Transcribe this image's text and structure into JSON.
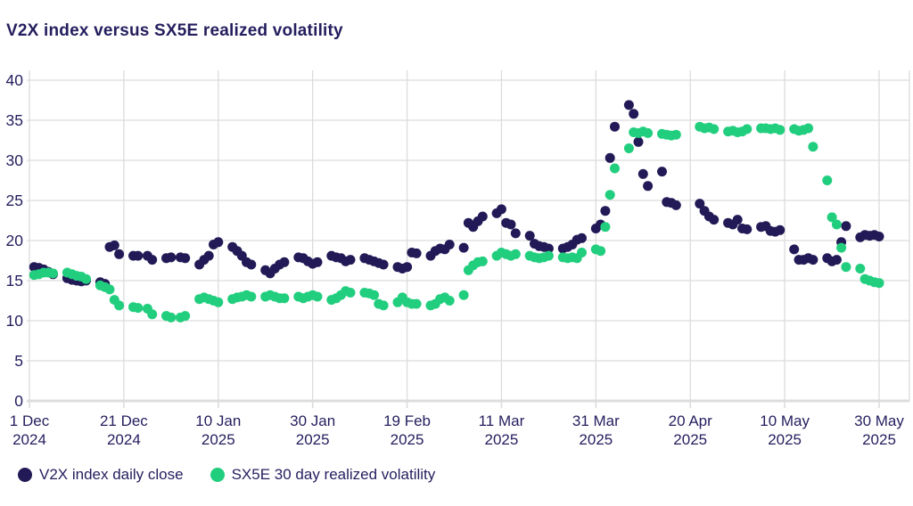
{
  "title": "V2X index versus SX5E realized volatility",
  "colors": {
    "v2x": "#221a56",
    "sx5e": "#21ce7e",
    "text": "#241e5e",
    "grid": "#dcdcdc"
  },
  "legend": [
    {
      "label": "V2X index daily close",
      "series": "v2x"
    },
    {
      "label": "SX5E 30 day realized volatility",
      "series": "sx5e"
    }
  ],
  "chart_data": {
    "type": "scatter",
    "title": "V2X index versus SX5E realized volatility",
    "xlabel": "",
    "ylabel": "",
    "ylim": [
      0,
      40
    ],
    "y_ticks": [
      0,
      5,
      10,
      15,
      20,
      25,
      30,
      35,
      40
    ],
    "grid": true,
    "legend_position": "bottom-left",
    "x_start": "2024-12-01",
    "x_end": "2025-05-30",
    "x_ticks": [
      {
        "date": "2024-12-01",
        "line1": "1 Dec",
        "line2": "2024"
      },
      {
        "date": "2024-12-21",
        "line1": "21 Dec",
        "line2": "2024"
      },
      {
        "date": "2025-01-10",
        "line1": "10 Jan",
        "line2": "2025"
      },
      {
        "date": "2025-01-30",
        "line1": "30 Jan",
        "line2": "2025"
      },
      {
        "date": "2025-02-19",
        "line1": "19 Feb",
        "line2": "2025"
      },
      {
        "date": "2025-03-11",
        "line1": "11 Mar",
        "line2": "2025"
      },
      {
        "date": "2025-03-31",
        "line1": "31 Mar",
        "line2": "2025"
      },
      {
        "date": "2025-04-20",
        "line1": "20 Apr",
        "line2": "2025"
      },
      {
        "date": "2025-05-10",
        "line1": "10 May",
        "line2": "2025"
      },
      {
        "date": "2025-05-30",
        "line1": "30 May",
        "line2": "2025"
      }
    ],
    "x": [
      "2024-12-02",
      "2024-12-03",
      "2024-12-04",
      "2024-12-05",
      "2024-12-06",
      "2024-12-09",
      "2024-12-10",
      "2024-12-11",
      "2024-12-12",
      "2024-12-13",
      "2024-12-16",
      "2024-12-17",
      "2024-12-18",
      "2024-12-19",
      "2024-12-20",
      "2024-12-23",
      "2024-12-24",
      "2024-12-26",
      "2024-12-27",
      "2024-12-30",
      "2024-12-31",
      "2025-01-02",
      "2025-01-03",
      "2025-01-06",
      "2025-01-07",
      "2025-01-08",
      "2025-01-09",
      "2025-01-10",
      "2025-01-13",
      "2025-01-14",
      "2025-01-15",
      "2025-01-16",
      "2025-01-17",
      "2025-01-20",
      "2025-01-21",
      "2025-01-22",
      "2025-01-23",
      "2025-01-24",
      "2025-01-27",
      "2025-01-28",
      "2025-01-29",
      "2025-01-30",
      "2025-01-31",
      "2025-02-03",
      "2025-02-04",
      "2025-02-05",
      "2025-02-06",
      "2025-02-07",
      "2025-02-10",
      "2025-02-11",
      "2025-02-12",
      "2025-02-13",
      "2025-02-14",
      "2025-02-17",
      "2025-02-18",
      "2025-02-19",
      "2025-02-20",
      "2025-02-21",
      "2025-02-24",
      "2025-02-25",
      "2025-02-26",
      "2025-02-27",
      "2025-02-28",
      "2025-03-03",
      "2025-03-04",
      "2025-03-05",
      "2025-03-06",
      "2025-03-07",
      "2025-03-10",
      "2025-03-11",
      "2025-03-12",
      "2025-03-13",
      "2025-03-14",
      "2025-03-17",
      "2025-03-18",
      "2025-03-19",
      "2025-03-20",
      "2025-03-21",
      "2025-03-24",
      "2025-03-25",
      "2025-03-26",
      "2025-03-27",
      "2025-03-28",
      "2025-03-31",
      "2025-04-01",
      "2025-04-02",
      "2025-04-03",
      "2025-04-04",
      "2025-04-07",
      "2025-04-08",
      "2025-04-09",
      "2025-04-10",
      "2025-04-11",
      "2025-04-14",
      "2025-04-15",
      "2025-04-16",
      "2025-04-17",
      "2025-04-22",
      "2025-04-23",
      "2025-04-24",
      "2025-04-25",
      "2025-04-28",
      "2025-04-29",
      "2025-04-30",
      "2025-05-01",
      "2025-05-02",
      "2025-05-05",
      "2025-05-06",
      "2025-05-07",
      "2025-05-08",
      "2025-05-09",
      "2025-05-12",
      "2025-05-13",
      "2025-05-14",
      "2025-05-15",
      "2025-05-16",
      "2025-05-19",
      "2025-05-20",
      "2025-05-21",
      "2025-05-22",
      "2025-05-23",
      "2025-05-26",
      "2025-05-27",
      "2025-05-28",
      "2025-05-29",
      "2025-05-30"
    ],
    "series": [
      {
        "name": "V2X index daily close",
        "color": "#221a56",
        "values": [
          16.7,
          16.6,
          16.4,
          16.1,
          15.8,
          15.3,
          15.1,
          15.0,
          14.9,
          15.0,
          14.8,
          14.6,
          19.2,
          19.4,
          18.3,
          18.1,
          18.1,
          18.1,
          17.6,
          17.8,
          17.9,
          17.9,
          17.8,
          17.0,
          17.6,
          18.1,
          19.5,
          19.8,
          19.2,
          18.7,
          18.1,
          17.3,
          17.0,
          16.3,
          15.9,
          16.5,
          17.0,
          17.3,
          17.9,
          17.8,
          17.4,
          17.1,
          17.3,
          18.1,
          17.9,
          17.8,
          17.4,
          17.6,
          17.8,
          17.6,
          17.4,
          17.2,
          17.0,
          16.7,
          16.5,
          16.7,
          18.5,
          18.4,
          18.1,
          18.7,
          19.0,
          18.9,
          19.5,
          19.1,
          22.2,
          21.7,
          22.4,
          23.0,
          23.4,
          23.9,
          22.2,
          22.0,
          20.9,
          20.6,
          19.6,
          19.3,
          19.2,
          19.0,
          19.0,
          19.2,
          19.5,
          20.1,
          20.3,
          21.5,
          22.0,
          23.7,
          30.3,
          34.2,
          36.9,
          35.8,
          32.3,
          28.3,
          26.8,
          28.6,
          24.8,
          24.7,
          24.4,
          24.6,
          23.7,
          23.0,
          22.6,
          22.2,
          22.0,
          22.6,
          21.5,
          21.4,
          21.7,
          21.8,
          21.2,
          21.1,
          21.3,
          18.9,
          17.6,
          17.6,
          17.8,
          17.6,
          17.8,
          17.4,
          17.6,
          19.8,
          21.8,
          20.4,
          20.7,
          20.6,
          20.7,
          20.5
        ]
      },
      {
        "name": "SX5E 30 day realized volatility",
        "color": "#21ce7e",
        "values": [
          15.7,
          15.8,
          16.0,
          16.0,
          15.9,
          16.0,
          15.8,
          15.6,
          15.5,
          15.2,
          14.4,
          14.2,
          13.9,
          12.6,
          11.9,
          11.7,
          11.6,
          11.5,
          10.8,
          10.6,
          10.4,
          10.4,
          10.6,
          12.7,
          12.9,
          12.7,
          12.5,
          12.3,
          12.7,
          12.9,
          13.0,
          13.2,
          13.0,
          13.0,
          13.2,
          13.0,
          12.8,
          12.8,
          13.0,
          12.8,
          13.0,
          13.2,
          13.0,
          12.6,
          12.8,
          13.2,
          13.7,
          13.5,
          13.5,
          13.4,
          13.2,
          12.1,
          11.9,
          12.3,
          12.9,
          12.3,
          12.1,
          12.1,
          11.9,
          12.1,
          12.7,
          12.9,
          12.5,
          13.2,
          16.3,
          16.9,
          17.3,
          17.4,
          18.1,
          18.5,
          18.3,
          18.1,
          18.3,
          18.1,
          17.9,
          17.8,
          17.9,
          18.1,
          17.9,
          17.8,
          17.9,
          17.8,
          18.5,
          18.9,
          18.7,
          21.7,
          25.7,
          29.0,
          31.5,
          33.5,
          33.4,
          33.6,
          33.4,
          33.3,
          33.2,
          33.1,
          33.2,
          34.2,
          34.0,
          34.1,
          33.9,
          33.6,
          33.7,
          33.5,
          33.6,
          33.9,
          34.0,
          34.0,
          33.9,
          34.0,
          33.8,
          33.9,
          33.7,
          33.8,
          34.0,
          31.7,
          27.5,
          22.9,
          22.0,
          19.1,
          16.7,
          16.5,
          15.2,
          15.0,
          14.8,
          14.7
        ]
      }
    ]
  }
}
